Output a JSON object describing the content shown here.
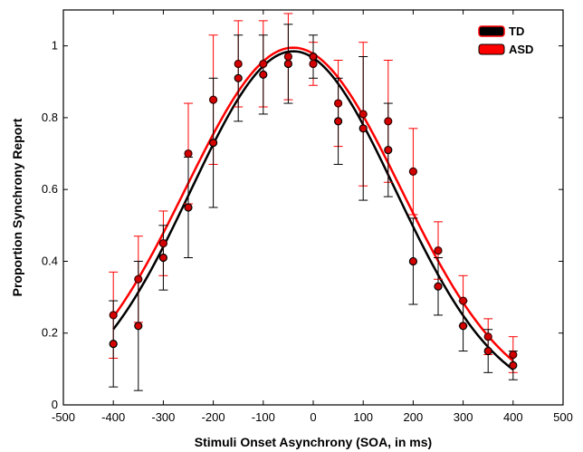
{
  "chart_data": {
    "type": "scatter",
    "xlabel": "Stimuli Onset Asynchrony (SOA, in ms)",
    "ylabel": "Proportion Synchrony Report",
    "xlim": [
      -500,
      500
    ],
    "ylim": [
      0,
      1.1
    ],
    "xticks": [
      -500,
      -400,
      -300,
      -200,
      -100,
      0,
      100,
      200,
      300,
      400,
      500
    ],
    "yticks": [
      0,
      0.2,
      0.4,
      0.6,
      0.8,
      1
    ],
    "ytick_labels": [
      "0",
      "0.2",
      "0.4",
      "0.6",
      "0.8",
      "1"
    ],
    "grid": false,
    "legend_position": "top-right",
    "x": [
      -400,
      -350,
      -300,
      -250,
      -200,
      -150,
      -100,
      -50,
      0,
      50,
      100,
      150,
      200,
      250,
      300,
      350,
      400
    ],
    "series": [
      {
        "name": "TD",
        "color": "#000000",
        "y": [
          0.17,
          0.22,
          0.41,
          0.55,
          0.73,
          0.91,
          0.92,
          0.95,
          0.97,
          0.79,
          0.77,
          0.71,
          0.4,
          0.33,
          0.22,
          0.15,
          0.11
        ],
        "err": [
          0.12,
          0.18,
          0.09,
          0.14,
          0.18,
          0.12,
          0.11,
          0.11,
          0.06,
          0.12,
          0.2,
          0.13,
          0.12,
          0.08,
          0.07,
          0.06,
          0.04
        ],
        "fit": {
          "mu": -40,
          "sigma": 205,
          "peak": 0.985
        }
      },
      {
        "name": "ASD",
        "color": "#ff0000",
        "y": [
          0.25,
          0.35,
          0.45,
          0.7,
          0.85,
          0.95,
          0.95,
          0.97,
          0.95,
          0.84,
          0.81,
          0.79,
          0.65,
          0.43,
          0.29,
          0.19,
          0.14
        ],
        "err": [
          0.12,
          0.12,
          0.09,
          0.14,
          0.18,
          0.12,
          0.12,
          0.12,
          0.06,
          0.12,
          0.2,
          0.17,
          0.12,
          0.08,
          0.07,
          0.05,
          0.05
        ],
        "fit": {
          "mu": -40,
          "sigma": 215,
          "peak": 0.995
        }
      }
    ]
  }
}
